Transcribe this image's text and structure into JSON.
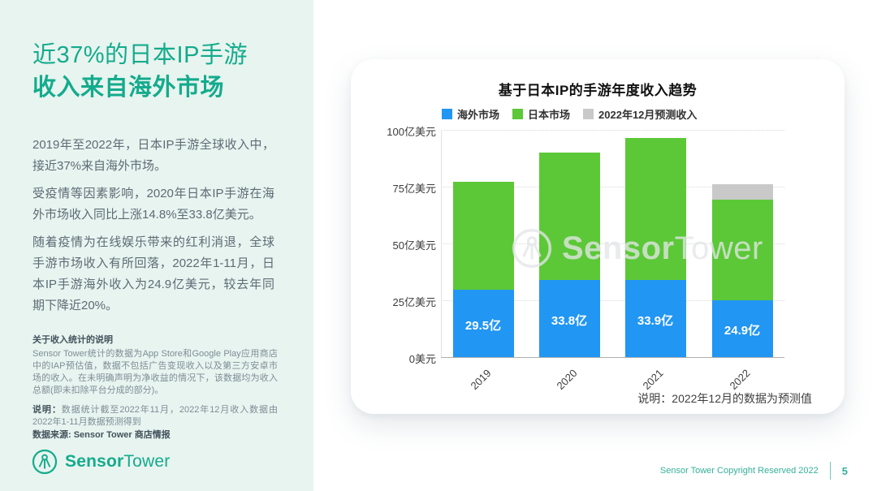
{
  "left_panel": {
    "title_line1": "近37%的日本IP手游",
    "title_line2": "收入来自海外市场",
    "paragraphs": [
      "2019年至2022年，日本IP手游全球收入中，接近37%来自海外市场。",
      "受疫情等因素影响，2020年日本IP手游在海外市场收入同比上涨14.8%至33.8亿美元。",
      "随着疫情为在线娱乐带来的红利消退，全球手游市场收入有所回落，2022年1-11月，日本IP手游海外收入为24.9亿美元，较去年同期下降近20%。"
    ],
    "notes_heading": "关于收入统计的说明",
    "notes_body": "Sensor Tower统计的数据为App Store和Google Play应用商店中的IAP预估值，数据不包括广告变现收入以及第三方安卓市场的收入。在未明确声明为净收益的情况下，该数据均为收入总额(即未扣除平台分成的部分)。",
    "statement_label": "说明：",
    "statement_text": "数据统计截至2022年11月，2022年12月收入数据由2022年1-11月数据预测得到",
    "source_text": "数据来源: Sensor Tower 商店情报",
    "logo_bold": "Sensor",
    "logo_light": "Tower"
  },
  "chart_data": {
    "type": "bar",
    "stacked": true,
    "title": "基于日本IP的手游年度收入趋势",
    "categories": [
      "2019",
      "2020",
      "2021",
      "2022"
    ],
    "series": [
      {
        "name": "海外市场",
        "color": "#2196F3",
        "values": [
          29.5,
          33.8,
          33.9,
          24.9
        ]
      },
      {
        "name": "日本市场",
        "color": "#5CC838",
        "values": [
          47.5,
          56.2,
          62.6,
          44.4
        ]
      },
      {
        "name": "2022年12月预测收入",
        "color": "#C9C9C9",
        "values": [
          0,
          0,
          0,
          6.7
        ]
      }
    ],
    "bar_labels": [
      "29.5亿",
      "33.8亿",
      "33.9亿",
      "24.9亿"
    ],
    "y_ticks": [
      "0美元",
      "25亿美元",
      "50亿美元",
      "75亿美元",
      "100亿美元"
    ],
    "ylim": [
      0,
      100
    ],
    "unit": "亿美元",
    "grid": "dotted-horizontal",
    "legend_position": "top",
    "note": "说明：2022年12月的数据为预测值",
    "watermark_bold": "Sensor",
    "watermark_light": "Tower"
  },
  "footer": {
    "copyright": "Sensor Tower Copyright Reserved 2022",
    "page_number": "5"
  },
  "colors": {
    "left_panel_bg": "#E8F4EF",
    "brand_teal": "#14AB8D",
    "body_text": "#5D6B76",
    "overseas_blue": "#2196F3",
    "japan_green": "#5CC838",
    "forecast_gray": "#C9C9C9"
  }
}
